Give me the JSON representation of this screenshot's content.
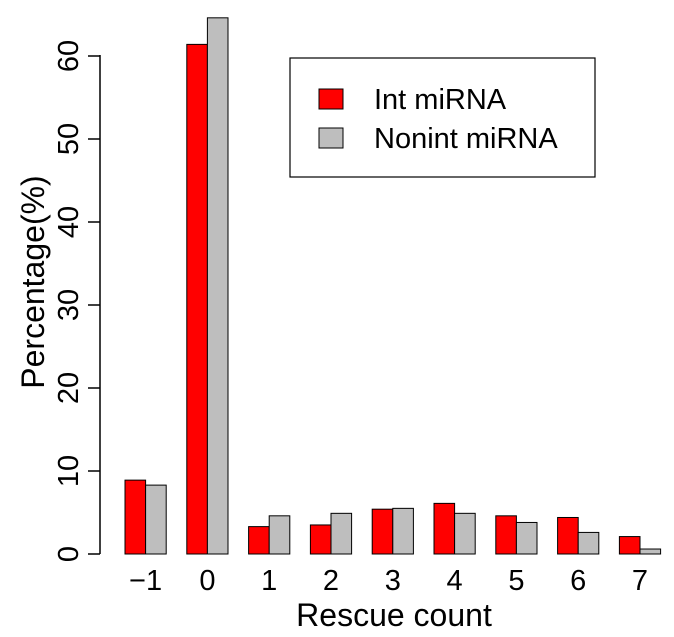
{
  "chart_data": {
    "type": "bar",
    "title": "",
    "xlabel": "Rescue count",
    "ylabel": "Percentage(%)",
    "categories": [
      "−1",
      "0",
      "1",
      "2",
      "3",
      "4",
      "5",
      "6",
      "7"
    ],
    "series": [
      {
        "name": "Int miRNA",
        "color": "#ff0000",
        "values": [
          8.9,
          61.4,
          3.3,
          3.5,
          5.4,
          6.1,
          4.6,
          4.4,
          2.1
        ]
      },
      {
        "name": "Nonint miRNA",
        "color": "#bebebe",
        "values": [
          8.3,
          64.6,
          4.6,
          4.9,
          5.5,
          4.9,
          3.8,
          2.6,
          0.6
        ]
      }
    ],
    "yticks": [
      0,
      10,
      20,
      30,
      40,
      50,
      60
    ],
    "ylim": [
      0,
      64.6
    ],
    "grid": false,
    "legend_position": "top-right"
  }
}
